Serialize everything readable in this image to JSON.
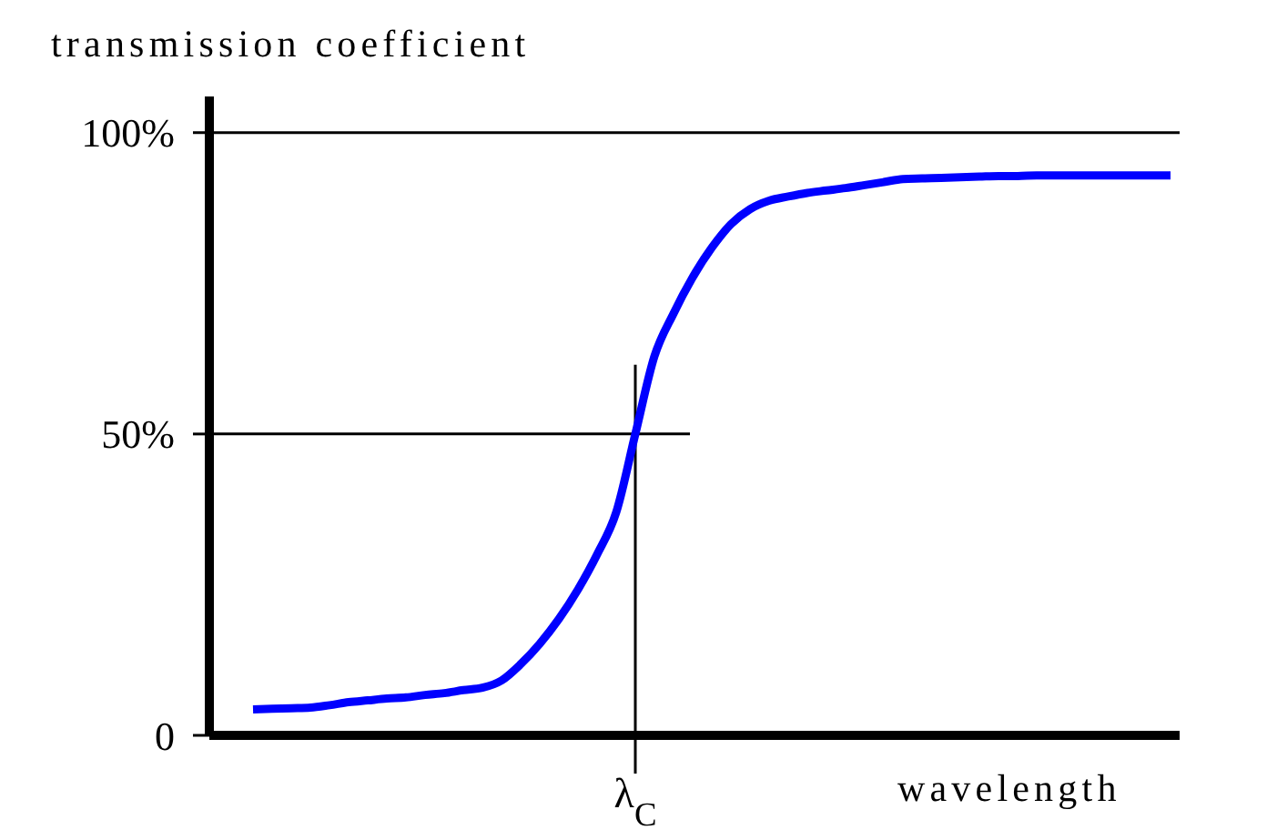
{
  "chart_data": {
    "type": "line",
    "ylabel": "transmission coefficient",
    "xlabel": "wavelength",
    "categories": [
      null,
      null,
      null,
      null,
      null,
      null,
      null,
      null,
      null,
      null,
      null,
      null,
      null,
      null,
      null,
      null,
      null,
      null,
      null,
      null,
      "λ$_{C}$",
      null,
      null,
      null,
      null,
      null,
      null,
      null,
      null,
      null,
      null,
      null,
      null,
      null,
      null,
      null,
      null,
      null,
      null,
      null,
      null,
      null,
      null,
      null,
      null,
      null,
      null,
      null,
      null
    ],
    "series": [
      {
        "color": "#0000ff",
        "values": [
          4.3,
          4.4,
          4.5,
          4.6,
          5,
          5.5,
          5.8,
          6.1,
          6.3,
          6.7,
          7,
          7.5,
          7.9,
          9.1,
          11.8,
          15.2,
          19.3,
          24.2,
          30,
          37,
          50,
          62.9,
          70,
          76,
          80.9,
          84.8,
          87.3,
          88.7,
          89.4,
          90,
          90.4,
          90.8,
          91.3,
          91.8,
          92.3,
          92.4,
          92.5,
          92.6,
          92.7,
          92.8,
          92.8,
          92.9,
          92.9,
          92.9,
          92.9,
          92.9,
          92.9,
          92.9,
          92.9
        ]
      }
    ],
    "ylim": [
      0,
      106
    ],
    "yticks": [
      0,
      {
        "value": 50,
        "label": "50%"
      },
      {
        "value": 100,
        "label": "100%"
      }
    ],
    "ref_lines": [
      {
        "axis": "y",
        "value": 100,
        "color": "#000000"
      },
      {
        "axis": "y",
        "value": 50,
        "color": "#000000"
      },
      {
        "axis": "x",
        "value": "λ$_{C}$",
        "color": "#000000"
      }
    ],
    "line_style": "solid"
  }
}
